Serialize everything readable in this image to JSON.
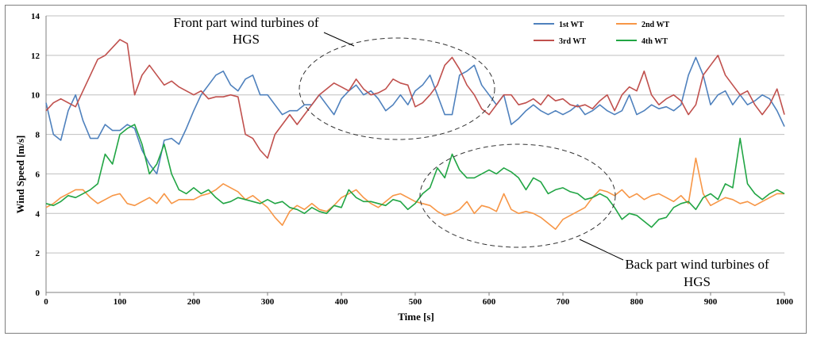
{
  "chart_data": {
    "type": "line",
    "title": "",
    "xlabel": "Time [s]",
    "ylabel": "Wind Speed [m/s]",
    "xlim": [
      0,
      1000
    ],
    "ylim": [
      0,
      14
    ],
    "x_ticks": [
      "0",
      "100",
      "200",
      "300",
      "400",
      "500",
      "600",
      "700",
      "800",
      "900",
      "1000"
    ],
    "y_ticks": [
      "0",
      "2",
      "4",
      "6",
      "8",
      "10",
      "12",
      "14"
    ],
    "grid": "horizontal",
    "legend_position": "top-right",
    "x_sample_step": 10,
    "series": [
      {
        "name": "1st WT",
        "color": "#4f81bd",
        "values": [
          9.6,
          8.0,
          7.7,
          9.2,
          10.0,
          8.7,
          7.8,
          7.8,
          8.5,
          8.2,
          8.2,
          8.5,
          8.3,
          7.2,
          6.5,
          6.0,
          7.7,
          7.8,
          7.5,
          8.3,
          9.2,
          10.0,
          10.5,
          11.0,
          11.2,
          10.5,
          10.2,
          10.8,
          11.0,
          10.0,
          10.0,
          9.5,
          9.0,
          9.2,
          9.2,
          9.5,
          9.5,
          10.0,
          9.5,
          9.0,
          9.8,
          10.2,
          10.5,
          10.0,
          10.2,
          9.8,
          9.2,
          9.5,
          10.0,
          9.5,
          10.2,
          10.5,
          11.0,
          10.0,
          9.0,
          9.0,
          11.0,
          11.2,
          11.5,
          10.5,
          10.0,
          9.5,
          10.0,
          8.5,
          8.8,
          9.2,
          9.5,
          9.2,
          9.0,
          9.2,
          9.0,
          9.2,
          9.5,
          9.0,
          9.2,
          9.5,
          9.2,
          9.0,
          9.2,
          10.0,
          9.0,
          9.2,
          9.5,
          9.3,
          9.4,
          9.2,
          9.5,
          11.0,
          11.9,
          11.0,
          9.5,
          10.0,
          10.2,
          9.5,
          10.0,
          9.5,
          9.7,
          10.0,
          9.8,
          9.2,
          8.4
        ]
      },
      {
        "name": "2nd WT",
        "color": "#f79646",
        "values": [
          4.3,
          4.5,
          4.8,
          5.0,
          5.2,
          5.2,
          4.8,
          4.5,
          4.7,
          4.9,
          5.0,
          4.5,
          4.4,
          4.6,
          4.8,
          4.5,
          5.0,
          4.5,
          4.7,
          4.7,
          4.7,
          4.9,
          5.0,
          5.2,
          5.5,
          5.3,
          5.1,
          4.7,
          4.9,
          4.6,
          4.3,
          3.8,
          3.4,
          4.1,
          4.4,
          4.2,
          4.5,
          4.2,
          4.1,
          4.4,
          4.8,
          5.0,
          5.2,
          4.8,
          4.5,
          4.3,
          4.6,
          4.9,
          5.0,
          4.8,
          4.6,
          4.5,
          4.4,
          4.1,
          3.9,
          4.0,
          4.2,
          4.6,
          4.0,
          4.4,
          4.3,
          4.1,
          5.0,
          4.2,
          4.0,
          4.1,
          4.0,
          3.8,
          3.5,
          3.2,
          3.7,
          3.9,
          4.1,
          4.3,
          4.8,
          5.2,
          5.1,
          4.9,
          5.2,
          4.8,
          5.0,
          4.7,
          4.9,
          5.0,
          4.8,
          4.6,
          4.9,
          4.5,
          6.8,
          5.0,
          4.4,
          4.6,
          4.8,
          4.7,
          4.5,
          4.6,
          4.4,
          4.6,
          4.8,
          5.0,
          5.0
        ]
      },
      {
        "name": "3rd WT",
        "color": "#c0504d",
        "values": [
          9.2,
          9.6,
          9.8,
          9.6,
          9.4,
          10.2,
          11.0,
          11.8,
          12.0,
          12.4,
          12.8,
          12.6,
          10.0,
          11.0,
          11.5,
          11.0,
          10.5,
          10.7,
          10.4,
          10.2,
          10.0,
          10.2,
          9.8,
          9.9,
          9.9,
          10.0,
          9.9,
          8.0,
          7.8,
          7.2,
          6.8,
          8.0,
          8.5,
          9.0,
          8.5,
          9.0,
          9.5,
          10.0,
          10.3,
          10.6,
          10.4,
          10.2,
          10.8,
          10.3,
          10.0,
          10.1,
          10.3,
          10.8,
          10.6,
          10.5,
          9.4,
          9.6,
          10.0,
          10.5,
          11.5,
          11.9,
          11.3,
          10.5,
          10.0,
          9.3,
          9.0,
          9.5,
          10.0,
          10.0,
          9.5,
          9.6,
          9.8,
          9.5,
          10.0,
          9.7,
          9.8,
          9.5,
          9.4,
          9.5,
          9.3,
          9.7,
          10.0,
          9.2,
          10.0,
          10.4,
          10.2,
          11.2,
          10.0,
          9.5,
          9.8,
          10.0,
          9.7,
          9.0,
          9.5,
          11.0,
          11.5,
          12.0,
          11.0,
          10.5,
          10.0,
          10.2,
          9.5,
          9.0,
          9.5,
          10.3,
          9.0
        ]
      },
      {
        "name": "4th WT",
        "color": "#21a544",
        "values": [
          4.5,
          4.4,
          4.6,
          4.9,
          4.8,
          5.0,
          5.2,
          5.5,
          7.0,
          6.5,
          8.0,
          8.3,
          8.5,
          7.5,
          6.0,
          6.5,
          7.5,
          6.0,
          5.2,
          5.0,
          5.3,
          5.0,
          5.2,
          4.8,
          4.5,
          4.6,
          4.8,
          4.7,
          4.6,
          4.5,
          4.7,
          4.5,
          4.6,
          4.3,
          4.2,
          4.0,
          4.3,
          4.1,
          4.0,
          4.4,
          4.3,
          5.2,
          4.8,
          4.6,
          4.6,
          4.5,
          4.4,
          4.7,
          4.6,
          4.2,
          4.5,
          5.0,
          5.3,
          6.3,
          5.8,
          7.0,
          6.2,
          5.8,
          5.8,
          6.0,
          6.2,
          6.0,
          6.3,
          6.1,
          5.8,
          5.2,
          5.8,
          5.6,
          5.0,
          5.2,
          5.3,
          5.1,
          5.0,
          4.7,
          4.8,
          5.0,
          4.8,
          4.3,
          3.7,
          4.0,
          3.9,
          3.6,
          3.3,
          3.7,
          3.8,
          4.3,
          4.5,
          4.6,
          4.2,
          4.8,
          5.0,
          4.7,
          5.5,
          5.3,
          7.8,
          5.5,
          5.0,
          4.7,
          5.0,
          5.2,
          5.0
        ]
      }
    ],
    "annotations": [
      {
        "line1": "Front part wind turbines of",
        "line2": "HGS"
      },
      {
        "line1": "Back part wind turbines of",
        "line2": "HGS"
      }
    ]
  }
}
